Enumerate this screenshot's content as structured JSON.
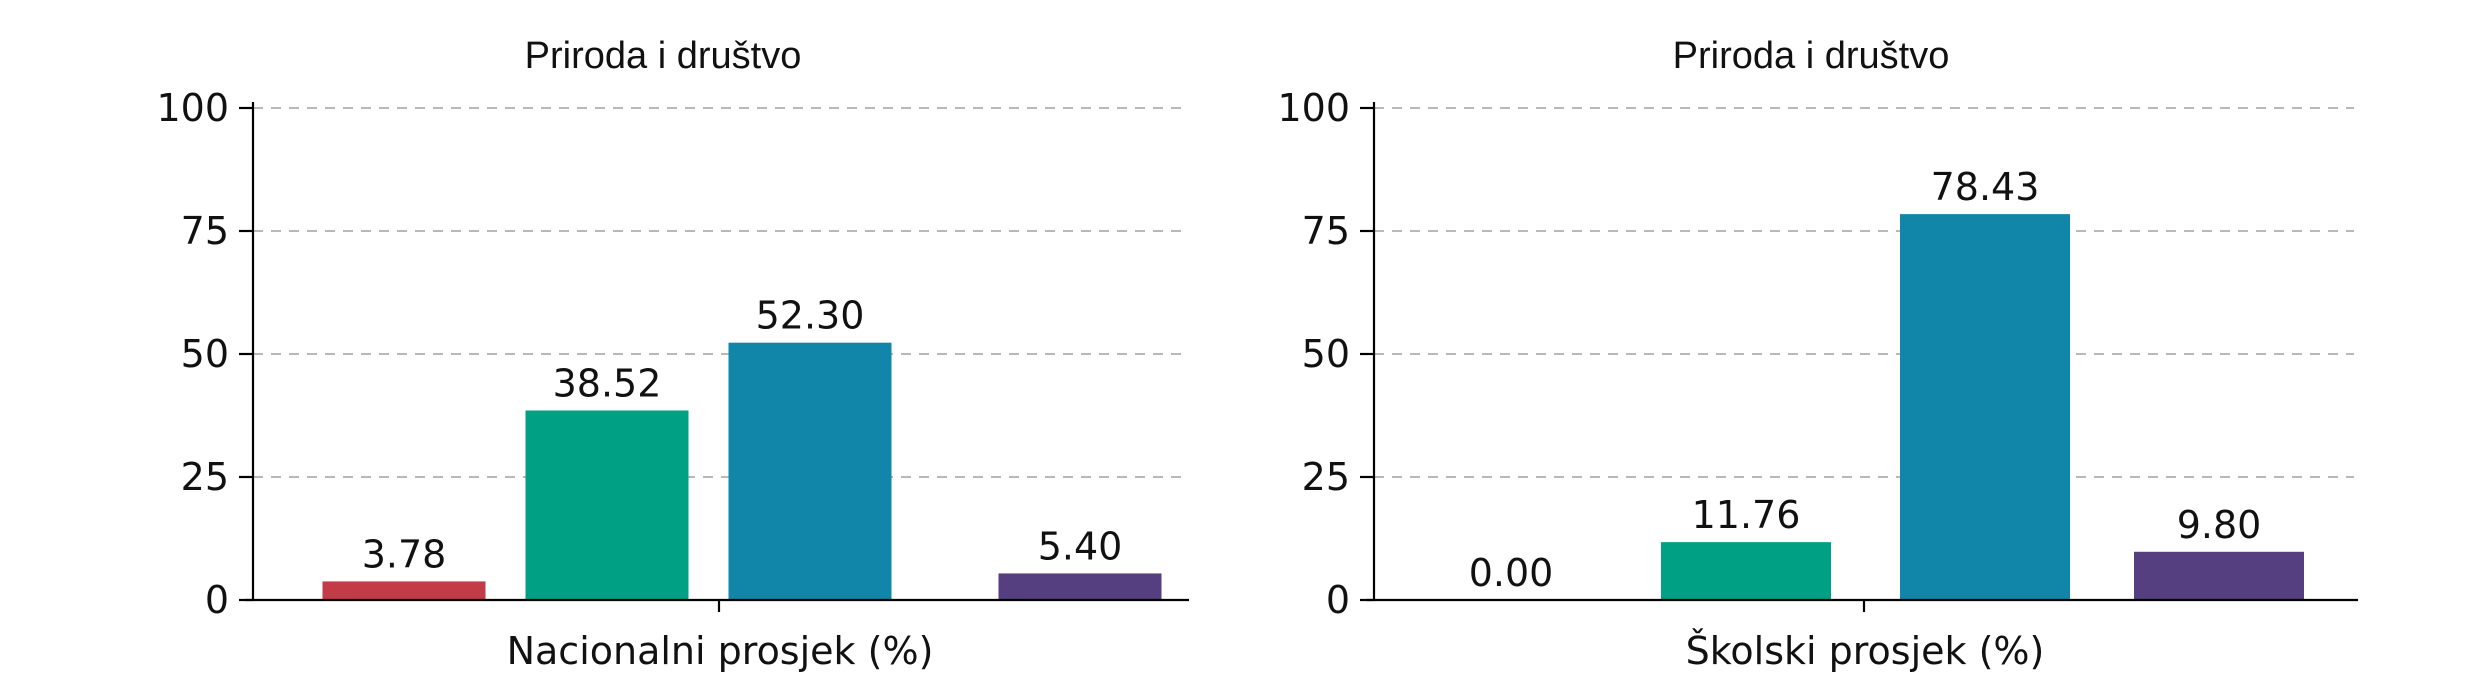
{
  "chart_data": [
    {
      "type": "bar",
      "title": "Priroda i društvo",
      "xlabel": "Nacionalni prosjek (%)",
      "ylabel": "",
      "ylim": [
        0,
        100
      ],
      "yticks": [
        0,
        25,
        50,
        75,
        100
      ],
      "grid": "horizontal dashed",
      "values": [
        3.78,
        38.52,
        52.3,
        5.4
      ],
      "value_labels": [
        "3.78",
        "38.52",
        "52.30",
        "5.40"
      ],
      "colors": [
        "#c23b47",
        "#00a085",
        "#1286a8",
        "#553f80"
      ]
    },
    {
      "type": "bar",
      "title": "Priroda i društvo",
      "xlabel": "Školski prosjek (%)",
      "ylabel": "",
      "ylim": [
        0,
        100
      ],
      "yticks": [
        0,
        25,
        50,
        75,
        100
      ],
      "grid": "horizontal dashed",
      "values": [
        0.0,
        11.76,
        78.43,
        9.8
      ],
      "value_labels": [
        "0.00",
        "11.76",
        "78.43",
        "9.80"
      ],
      "colors": [
        "#c23b47",
        "#00a085",
        "#1286a8",
        "#553f80"
      ]
    }
  ]
}
